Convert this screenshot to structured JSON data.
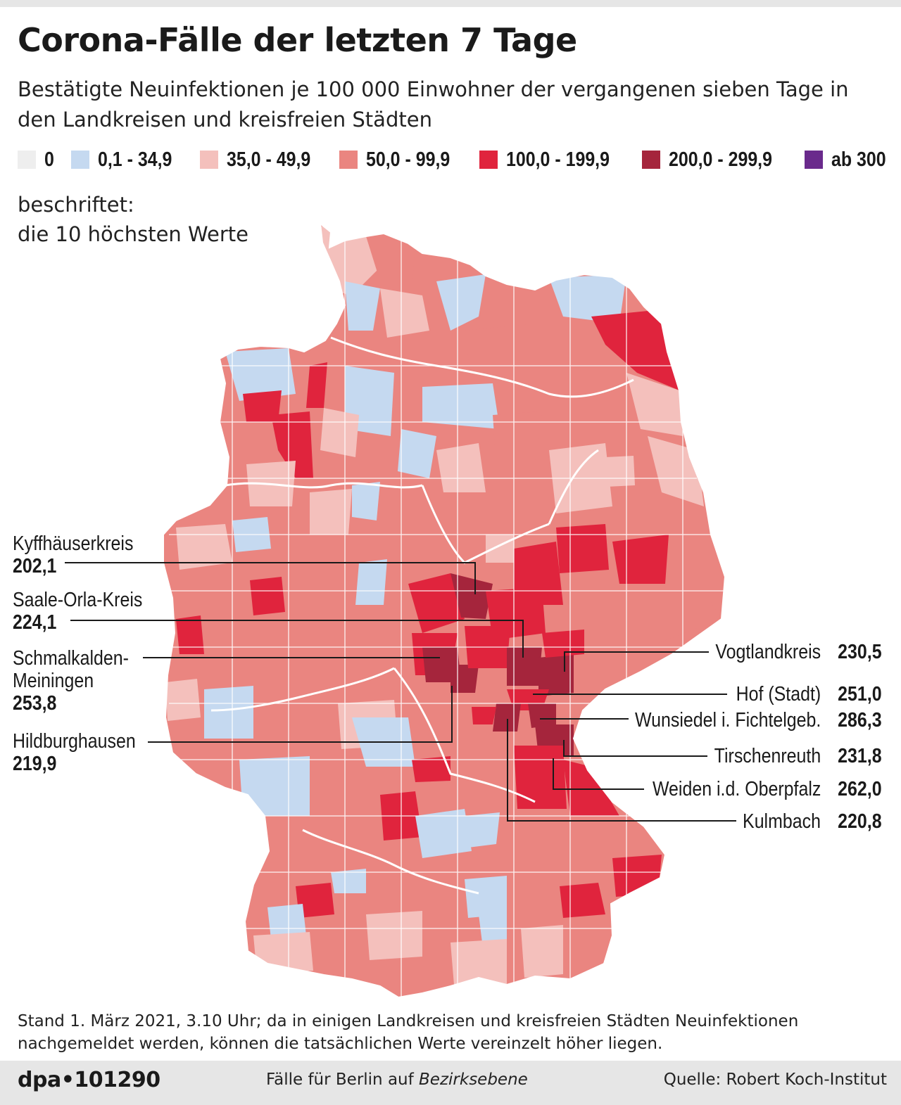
{
  "title": "Corona-Fälle der letzten 7 Tage",
  "subtitle": "Bestätigte Neuinfektionen je 100 000 Einwohner der vergangenen sieben Tage in den Landkreisen und kreisfreien Städten",
  "legend": [
    {
      "label": "0",
      "color": "#eeeeee"
    },
    {
      "label": "0,1 - 34,9",
      "color": "#c5d9f0"
    },
    {
      "label": "35,0 - 49,9",
      "color": "#f4c0bc"
    },
    {
      "label": "50,0 - 99,9",
      "color": "#ea8580"
    },
    {
      "label": "100,0 - 199,9",
      "color": "#e0243d"
    },
    {
      "label": "200,0 - 299,9",
      "color": "#a5253c"
    },
    {
      "label": "ab 300",
      "color": "#6a2a8c"
    }
  ],
  "label_note": {
    "line1": "beschriftet:",
    "line2": "die 10 höchsten Werte"
  },
  "annotations_left": [
    {
      "name": "Kyffhäuserkreis",
      "value": "202,1"
    },
    {
      "name": "Saale-Orla-Kreis",
      "value": "224,1"
    },
    {
      "name_line1": "Schmalkalden-",
      "name_line2": "Meiningen",
      "value": "253,8"
    },
    {
      "name": "Hildburghausen",
      "value": "219,9"
    }
  ],
  "annotations_right": [
    {
      "name": "Vogtlandkreis",
      "value": "230,5"
    },
    {
      "name": "Hof (Stadt)",
      "value": "251,0"
    },
    {
      "name": "Wunsiedel i. Fichtelgeb.",
      "value": "286,3"
    },
    {
      "name": "Tirschenreuth",
      "value": "231,8"
    },
    {
      "name": "Weiden i.d. Oberpfalz",
      "value": "262,0"
    },
    {
      "name": "Kulmbach",
      "value": "220,8"
    }
  ],
  "footnote": "Stand 1. März 2021, 3.10 Uhr; da in einigen Landkreisen und kreisfreien Städten Neuinfektionen nachgemeldet werden, können die tatsächlichen Werte vereinzelt höher liegen.",
  "footer": {
    "code": "dpa•101290",
    "center_prefix": "Fälle für Berlin auf",
    "center_italic": "Bezirksebene",
    "source": "Quelle: Robert Koch-Institut"
  }
}
